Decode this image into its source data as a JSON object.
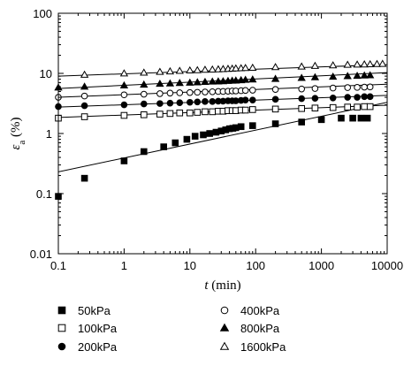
{
  "chart_data": {
    "type": "scatter",
    "xscale": "log",
    "yscale": "log",
    "xlim": [
      0.1,
      10000
    ],
    "ylim": [
      0.01,
      100
    ],
    "xlabel": {
      "var": "t",
      "unit": " (min)"
    },
    "ylabel": {
      "var": "ε",
      "sub": "a",
      "unit": " (%)"
    },
    "xticks": [
      {
        "value": 0.1,
        "label": "0.1"
      },
      {
        "value": 1,
        "label": "1"
      },
      {
        "value": 10,
        "label": "10"
      },
      {
        "value": 100,
        "label": "100"
      },
      {
        "value": 1000,
        "label": "1000"
      },
      {
        "value": 10000,
        "label": "10000"
      }
    ],
    "yticks": [
      {
        "value": 0.01,
        "label": "0.01"
      },
      {
        "value": 0.1,
        "label": "0.1"
      },
      {
        "value": 1,
        "label": "1"
      },
      {
        "value": 10,
        "label": "10"
      },
      {
        "value": 100,
        "label": "100"
      }
    ],
    "legend_placement": "below",
    "series": [
      {
        "name": "50kPa",
        "marker": "square",
        "filled": true,
        "x": [
          0.1,
          0.25,
          1,
          2,
          4,
          6,
          9,
          12,
          16,
          20,
          25,
          30,
          35,
          40,
          45,
          50,
          60,
          90,
          200,
          500,
          1000,
          2000,
          3000,
          4000,
          5000
        ],
        "y": [
          0.09,
          0.18,
          0.35,
          0.5,
          0.6,
          0.7,
          0.8,
          0.9,
          0.95,
          1.0,
          1.05,
          1.1,
          1.15,
          1.2,
          1.22,
          1.25,
          1.3,
          1.35,
          1.45,
          1.55,
          1.7,
          1.8,
          1.8,
          1.8,
          1.8
        ],
        "fit": {
          "x": [
            0.1,
            10000
          ],
          "y": [
            0.23,
            3.3
          ]
        }
      },
      {
        "name": "100kPa",
        "marker": "square",
        "filled": false,
        "x": [
          0.1,
          0.25,
          1,
          2,
          3.5,
          5,
          7,
          10,
          13,
          17,
          22,
          27,
          32,
          38,
          44,
          50,
          60,
          70,
          90,
          200,
          500,
          800,
          1500,
          2500,
          3500,
          4500,
          5500
        ],
        "y": [
          1.8,
          1.9,
          2.0,
          2.05,
          2.1,
          2.15,
          2.2,
          2.2,
          2.25,
          2.3,
          2.3,
          2.35,
          2.35,
          2.4,
          2.4,
          2.4,
          2.45,
          2.45,
          2.5,
          2.55,
          2.6,
          2.65,
          2.7,
          2.75,
          2.75,
          2.8,
          2.8
        ],
        "fit": {
          "x": [
            0.1,
            10000
          ],
          "y": [
            1.85,
            2.95
          ]
        }
      },
      {
        "name": "200kPa",
        "marker": "circle",
        "filled": true,
        "x": [
          0.1,
          0.25,
          1,
          2,
          3.5,
          5,
          7,
          10,
          13,
          17,
          22,
          27,
          32,
          38,
          44,
          50,
          60,
          70,
          90,
          200,
          500,
          800,
          1500,
          2500,
          3500,
          4500,
          5500
        ],
        "y": [
          2.8,
          2.9,
          3.0,
          3.1,
          3.15,
          3.2,
          3.25,
          3.3,
          3.35,
          3.4,
          3.4,
          3.45,
          3.45,
          3.5,
          3.5,
          3.5,
          3.55,
          3.6,
          3.6,
          3.7,
          3.8,
          3.85,
          3.9,
          4.0,
          4.0,
          4.1,
          4.1
        ],
        "fit": {
          "x": [
            0.1,
            10000
          ],
          "y": [
            2.75,
            4.3
          ]
        }
      },
      {
        "name": "400kPa",
        "marker": "circle",
        "filled": false,
        "x": [
          0.1,
          0.25,
          1,
          2,
          3.5,
          5,
          7,
          10,
          13,
          17,
          22,
          27,
          32,
          38,
          44,
          50,
          60,
          70,
          90,
          200,
          500,
          800,
          1500,
          2500,
          3500,
          4500,
          5500
        ],
        "y": [
          4.0,
          4.2,
          4.4,
          4.5,
          4.6,
          4.7,
          4.75,
          4.8,
          4.85,
          4.9,
          4.95,
          5.0,
          5.0,
          5.05,
          5.1,
          5.1,
          5.15,
          5.2,
          5.25,
          5.4,
          5.5,
          5.6,
          5.7,
          5.8,
          5.85,
          5.9,
          5.95
        ],
        "fit": {
          "x": [
            0.1,
            10000
          ],
          "y": [
            4.0,
            6.6
          ]
        }
      },
      {
        "name": "800kPa",
        "marker": "triangle",
        "filled": true,
        "x": [
          0.1,
          0.25,
          1,
          2,
          3.5,
          5,
          7,
          10,
          13,
          17,
          22,
          27,
          32,
          38,
          44,
          50,
          60,
          70,
          90,
          200,
          500,
          800,
          1500,
          2500,
          3500,
          4500,
          5500
        ],
        "y": [
          5.8,
          6.0,
          6.3,
          6.5,
          6.7,
          6.8,
          6.9,
          7.0,
          7.1,
          7.2,
          7.3,
          7.35,
          7.4,
          7.5,
          7.55,
          7.6,
          7.7,
          7.8,
          7.9,
          8.1,
          8.4,
          8.6,
          8.8,
          9.0,
          9.1,
          9.2,
          9.3
        ],
        "fit": {
          "x": [
            0.1,
            10000
          ],
          "y": [
            5.6,
            10.3
          ]
        }
      },
      {
        "name": "1600kPa",
        "marker": "triangle",
        "filled": false,
        "x": [
          0.25,
          1,
          2,
          3.5,
          5,
          7,
          10,
          13,
          17,
          22,
          27,
          32,
          38,
          44,
          50,
          60,
          70,
          90,
          200,
          500,
          800,
          1500,
          2500,
          3500,
          4500,
          5500,
          7000,
          8500
        ],
        "y": [
          9.5,
          10.0,
          10.3,
          10.6,
          10.8,
          11.0,
          11.2,
          11.3,
          11.5,
          11.6,
          11.7,
          11.8,
          11.9,
          12.0,
          12.1,
          12.2,
          12.3,
          12.4,
          12.7,
          13.0,
          13.3,
          13.6,
          13.9,
          14.0,
          14.1,
          14.2,
          14.3,
          14.4
        ],
        "fit": {
          "x": [
            0.1,
            10000
          ],
          "y": [
            9.0,
            14.0
          ]
        }
      }
    ]
  }
}
